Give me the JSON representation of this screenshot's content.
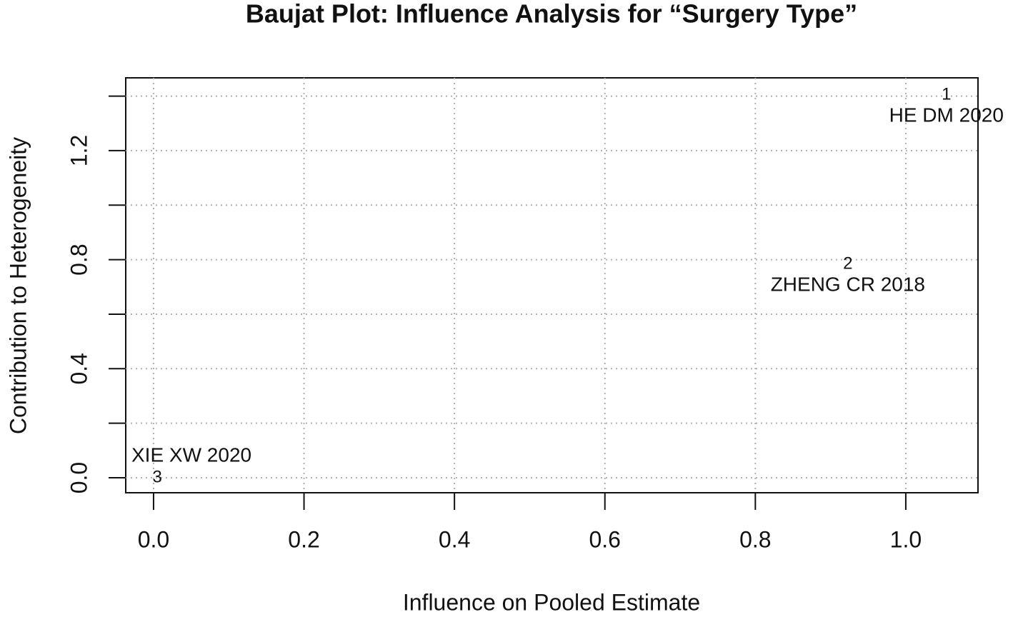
{
  "chart_data": {
    "type": "scatter",
    "title": "Baujat Plot: Influence Analysis for “Surgery Type”",
    "x_label": "Influence on Pooled Estimate",
    "y_label": "Contribution to Heterogeneity",
    "x": [
      1.054,
      0.923,
      0.005
    ],
    "values": [
      1.404,
      0.783,
      0.0
    ],
    "point_labels": [
      "1",
      "2",
      "3"
    ],
    "study_labels": [
      "HE DM 2020",
      "ZHENG CR 2018",
      "XIE XW 2020"
    ],
    "color": "#111111",
    "xlim": [
      -0.037,
      1.096
    ],
    "ylim": [
      -0.055,
      1.467
    ],
    "xticks": [
      {
        "value": 0,
        "label": "0.0"
      },
      0.2,
      0.4,
      0.6,
      0.8,
      {
        "value": 1,
        "label": "1.0"
      }
    ],
    "yticks": [
      {
        "value": 0,
        "label": "0.0"
      },
      0.4,
      0.8,
      1.2
    ],
    "yminorticks": [
      0.2,
      0.6,
      1.0,
      1.4
    ],
    "grid": true
  }
}
